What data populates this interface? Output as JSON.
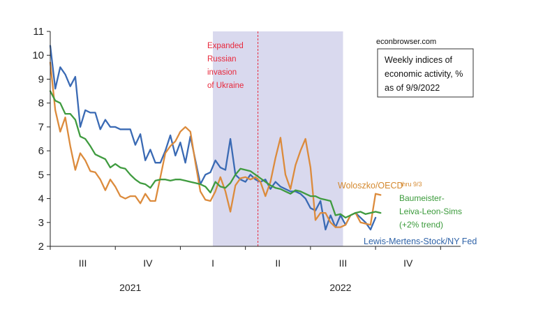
{
  "chart_data": {
    "type": "line",
    "title": "",
    "xlabel": "",
    "ylabel": "",
    "ylim": [
      2,
      11
    ],
    "yticks": [
      2,
      3,
      4,
      5,
      6,
      7,
      8,
      9,
      10,
      11
    ],
    "grid": false,
    "x_unit": "weeks",
    "xlim": [
      0,
      82
    ],
    "quarter_ticks": [
      {
        "label": "III",
        "x": 6.5
      },
      {
        "label": "IV",
        "x": 19.5
      },
      {
        "label": "I",
        "x": 32.5
      },
      {
        "label": "II",
        "x": 45.5
      },
      {
        "label": "III",
        "x": 58.5
      },
      {
        "label": "IV",
        "x": 71.5
      }
    ],
    "year_labels": [
      {
        "label": "2021",
        "x": 16
      },
      {
        "label": "2022",
        "x": 58
      }
    ],
    "shaded_region": {
      "x_start": 32.5,
      "x_end": 58.5,
      "color": "#d9d9ee"
    },
    "vline": {
      "x": 41.5,
      "color": "#e8283c"
    },
    "annotations": {
      "event": [
        "Expanded",
        "Russian",
        "invasion",
        "of Ukraine"
      ],
      "source": "econbrowser.com",
      "box": [
        "Weekly indices of",
        "economic activity, %",
        "as of 9/9/2022"
      ],
      "thru": "thru 9/3"
    },
    "series": [
      {
        "name": "Lewis-Mertens-Stock/NY Fed",
        "color": "#3a6ab4",
        "x0": 0,
        "values": [
          10.4,
          8.6,
          9.5,
          9.2,
          8.7,
          9.1,
          7.0,
          7.7,
          7.6,
          7.6,
          6.9,
          7.3,
          7.0,
          7.0,
          6.9,
          6.9,
          6.9,
          6.25,
          6.7,
          5.6,
          6.05,
          5.5,
          5.5,
          6.0,
          6.65,
          5.8,
          6.35,
          5.5,
          6.6,
          5.6,
          4.6,
          5.0,
          5.1,
          5.6,
          5.3,
          5.2,
          6.5,
          5.0,
          4.8,
          4.7,
          5.0,
          4.8,
          4.7,
          4.8,
          4.4,
          4.7,
          4.5,
          4.4,
          4.3,
          4.3,
          4.2,
          4.0,
          3.6,
          3.5,
          3.9,
          2.7,
          3.3,
          2.8,
          3.3,
          2.9,
          3.3,
          3.4,
          3.2,
          3.0,
          2.7,
          3.2
        ],
        "label_lines": [
          "Lewis-Mertens-Stock/NY Fed"
        ]
      },
      {
        "name": "Woloszko/OECD",
        "color": "#dc8b3c",
        "x0": 0,
        "values": [
          9.7,
          7.7,
          6.8,
          7.4,
          6.2,
          5.2,
          5.9,
          5.6,
          5.15,
          5.1,
          4.8,
          4.35,
          4.8,
          4.5,
          4.1,
          4.0,
          4.1,
          4.1,
          3.8,
          4.2,
          3.9,
          3.9,
          4.9,
          5.9,
          6.2,
          6.4,
          6.8,
          7.0,
          6.8,
          5.5,
          4.3,
          3.95,
          3.9,
          4.3,
          4.9,
          4.3,
          3.45,
          4.55,
          4.85,
          4.9,
          4.8,
          4.9,
          4.7,
          4.1,
          4.7,
          5.7,
          6.55,
          5.0,
          4.4,
          5.4,
          6.0,
          6.5,
          5.3,
          3.1,
          3.4,
          3.4,
          3.0,
          2.8,
          2.8,
          2.9,
          3.3,
          3.4,
          3.0,
          2.95,
          2.9,
          4.2,
          4.15
        ],
        "label_lines": [
          "Woloszko/OECD"
        ]
      },
      {
        "name": "Baumeister-Leiva-Leon-Sims (+2% trend)",
        "color": "#3f9b3f",
        "x0": 0,
        "values": [
          8.5,
          8.1,
          8.0,
          7.55,
          7.55,
          7.3,
          6.6,
          6.5,
          6.2,
          5.85,
          5.75,
          5.65,
          5.3,
          5.45,
          5.3,
          5.25,
          5.0,
          4.8,
          4.65,
          4.6,
          4.45,
          4.75,
          4.8,
          4.8,
          4.75,
          4.8,
          4.8,
          4.75,
          4.7,
          4.65,
          4.6,
          4.5,
          4.25,
          4.7,
          4.5,
          4.45,
          4.65,
          5.0,
          5.25,
          5.2,
          5.15,
          5.0,
          4.85,
          4.7,
          4.55,
          4.45,
          4.4,
          4.3,
          4.2,
          4.35,
          4.3,
          4.2,
          4.1,
          4.1,
          4.0,
          3.95,
          3.9,
          3.3,
          3.35,
          3.2,
          3.3,
          3.4,
          3.45,
          3.35,
          3.4,
          3.45,
          3.4
        ],
        "label_lines": [
          "Baumeister-",
          "Leiva-Leon-Sims",
          "(+2% trend)"
        ]
      }
    ]
  }
}
